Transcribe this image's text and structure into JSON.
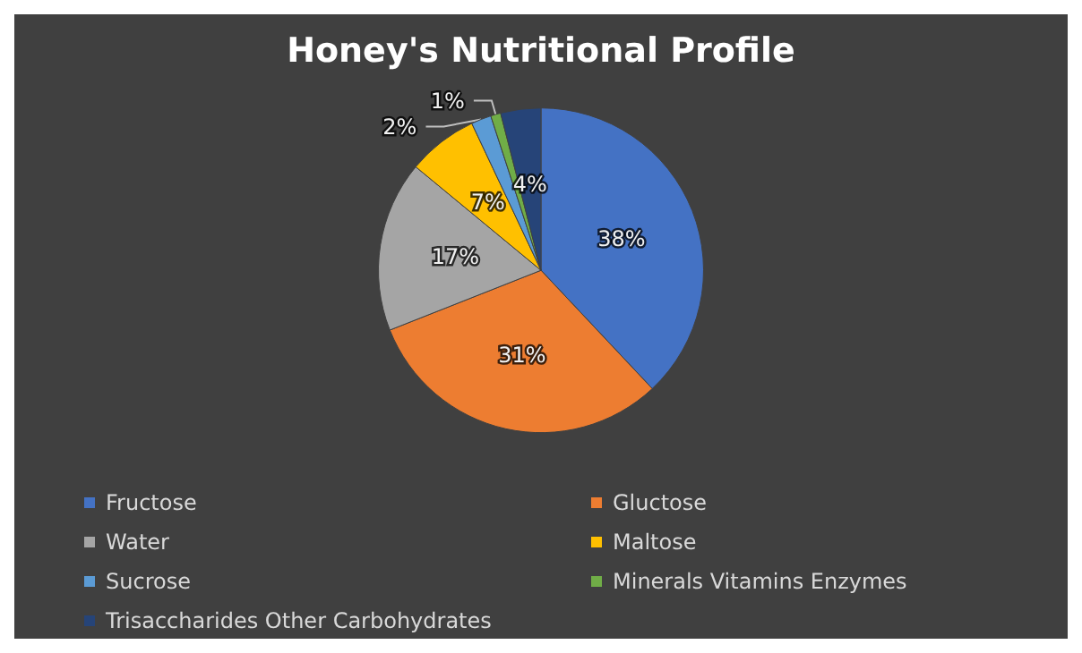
{
  "chart_data": {
    "type": "pie",
    "title": "Honey's Nutritional Profile",
    "categories": [
      "Fructose",
      "Gluctose",
      "Water",
      "Maltose",
      "Sucrose",
      "Minerals Vitamins Enzymes",
      "Trisaccharides Other Carbohydrates"
    ],
    "values": [
      38,
      31,
      17,
      7,
      2,
      1,
      4
    ],
    "colors": [
      "#4472c4",
      "#ed7d31",
      "#a5a5a5",
      "#ffc000",
      "#5b9bd5",
      "#70ad47",
      "#264478"
    ],
    "value_labels": [
      "38%",
      "31%",
      "17%",
      "7%",
      "2%",
      "1%",
      "4%"
    ],
    "legend": "bottom"
  }
}
